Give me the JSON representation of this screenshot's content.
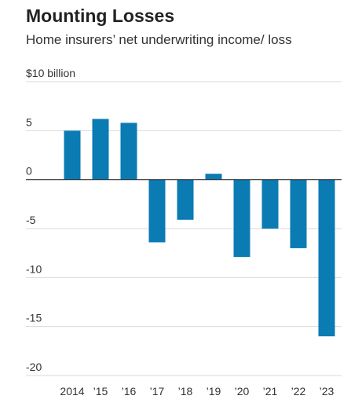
{
  "chart_data": {
    "type": "bar",
    "title": "Mounting Losses",
    "subtitle": "Home insurers’ net underwriting income/ loss",
    "unit_label": "$10 billion",
    "xlabel": "",
    "ylabel": "",
    "categories": [
      "2014",
      "’15",
      "’16",
      "’17",
      "’18",
      "’19",
      "’20",
      "’21",
      "’22",
      "’23"
    ],
    "values": [
      5.0,
      6.2,
      5.8,
      -6.4,
      -4.1,
      0.6,
      -7.9,
      -5.0,
      -7.0,
      -16.0
    ],
    "ylim": [
      -20,
      10
    ],
    "yticks": [
      10,
      5,
      0,
      -5,
      -10,
      -15,
      -20
    ],
    "ytick_labels": [
      "$10 billion",
      "5",
      "0",
      "-5",
      "-10",
      "-15",
      "-20"
    ],
    "grid": true,
    "legend": "none",
    "colors": {
      "bar": "#0a7bb3",
      "grid": "#d9d9d9",
      "zero_line": "#333333",
      "text": "#333333"
    }
  }
}
